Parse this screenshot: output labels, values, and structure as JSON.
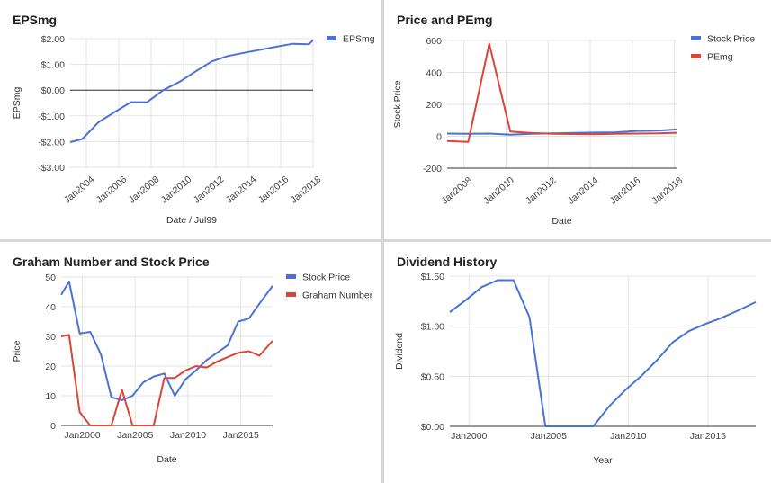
{
  "chart_data": [
    {
      "type": "line",
      "title": "EPSmg",
      "xlabel": "Date / Jul99",
      "ylabel": "EPSmg",
      "legend_position": "top-right",
      "x_tick_labels": [
        "Jan2004",
        "Jan2006",
        "Jan2008",
        "Jan2010",
        "Jan2012",
        "Jan2014",
        "Jan2016",
        "Jan2018"
      ],
      "x_ticks": [
        2004,
        2006,
        2008,
        2010,
        2012,
        2014,
        2016,
        2018
      ],
      "y_tick_labels": [
        "$2.00",
        "$1.00",
        "$0.00",
        "-$1.00",
        "-$2.00",
        "-$3.00"
      ],
      "y_ticks": [
        2,
        1,
        0,
        -1,
        -2,
        -3
      ],
      "xlim": [
        2003,
        2018
      ],
      "ylim": [
        -3,
        2
      ],
      "zero_line": true,
      "grid": true,
      "series": [
        {
          "name": "EPSmg",
          "color": "#4a72d6",
          "x": [
            2003,
            2003.75,
            2004.75,
            2005.75,
            2006.75,
            2007.75,
            2008.75,
            2009.75,
            2010.75,
            2011.75,
            2012.75,
            2013.75,
            2014.75,
            2015.75,
            2016.75,
            2017.75,
            2018
          ],
          "y": [
            -2.02,
            -1.9,
            -1.25,
            -0.85,
            -0.47,
            -0.47,
            0.0,
            0.32,
            0.73,
            1.12,
            1.33,
            1.45,
            1.57,
            1.69,
            1.8,
            1.78,
            1.95
          ]
        }
      ]
    },
    {
      "type": "line",
      "title": "Price and PEmg",
      "xlabel": "Date",
      "ylabel": "Stock Price",
      "legend_position": "top-right",
      "x_tick_labels": [
        "Jan2008",
        "Jan2010",
        "Jan2012",
        "Jan2014",
        "Jan2016",
        "Jan2018"
      ],
      "x_ticks": [
        2008,
        2010,
        2012,
        2014,
        2016,
        2018
      ],
      "y_tick_labels": [
        "600",
        "400",
        "200",
        "0",
        "-200"
      ],
      "y_ticks": [
        600,
        400,
        200,
        0,
        -200
      ],
      "xlim": [
        2007.2,
        2018.1
      ],
      "ylim": [
        -200,
        600
      ],
      "grid": true,
      "series": [
        {
          "name": "Stock Price",
          "color": "#4a72d6",
          "x": [
            2007.2,
            2008.2,
            2009.2,
            2010.2,
            2011.2,
            2012.2,
            2013.2,
            2014.2,
            2015.2,
            2016.2,
            2017.2,
            2018.1
          ],
          "y": [
            17,
            16,
            17,
            10,
            15,
            18,
            21,
            23,
            25,
            33,
            35,
            43
          ]
        },
        {
          "name": "PEmg",
          "color": "#db4437",
          "x": [
            2007.2,
            2008.2,
            2009.2,
            2010.2,
            2011.2,
            2012.2,
            2013.2,
            2014.2,
            2015.2,
            2016.2,
            2017.2,
            2018.1
          ],
          "y": [
            -30,
            -35,
            580,
            30,
            20,
            15,
            14,
            13,
            15,
            17,
            18,
            22
          ]
        }
      ]
    },
    {
      "type": "line",
      "title": "Graham Number and Stock Price",
      "xlabel": "Date",
      "ylabel": "Price",
      "legend_position": "top-right",
      "x_tick_labels": [
        "Jan2000",
        "Jan2005",
        "Jan2010",
        "Jan2015"
      ],
      "x_ticks": [
        2000,
        2005,
        2010,
        2015
      ],
      "y_tick_labels": [
        "50",
        "40",
        "30",
        "20",
        "10",
        "0"
      ],
      "y_ticks": [
        50,
        40,
        30,
        20,
        10,
        0
      ],
      "xlim": [
        1998,
        2018
      ],
      "ylim": [
        0,
        50
      ],
      "grid": true,
      "series": [
        {
          "name": "Stock Price",
          "color": "#4a72d6",
          "x": [
            1998,
            1998.75,
            1999.75,
            2000.75,
            2001.75,
            2002.75,
            2003.75,
            2004.75,
            2005.75,
            2006.75,
            2007.75,
            2008.75,
            2009.75,
            2010.75,
            2011.75,
            2012.75,
            2013.75,
            2014.75,
            2015.75,
            2016.75,
            2018
          ],
          "y": [
            44,
            48.5,
            31,
            31.5,
            24,
            9.5,
            8.5,
            10,
            14.5,
            16.5,
            17.5,
            10,
            15.5,
            18.5,
            22,
            24.5,
            27,
            35,
            36,
            41,
            47
          ]
        },
        {
          "name": "Graham Number",
          "color": "#db4437",
          "x": [
            1998,
            1998.75,
            1999.75,
            2000.75,
            2001.75,
            2002.75,
            2003.75,
            2004.75,
            2005.75,
            2006.75,
            2007.75,
            2008.75,
            2009.75,
            2010.75,
            2011.75,
            2012.75,
            2013.75,
            2014.75,
            2015.75,
            2016.75,
            2018
          ],
          "y": [
            30,
            30.5,
            4.5,
            0,
            0,
            0,
            12,
            0,
            0,
            0,
            16,
            16,
            18.5,
            20,
            19.5,
            21.5,
            23,
            24.5,
            25,
            23.5,
            28.5
          ]
        }
      ]
    },
    {
      "type": "line",
      "title": "Dividend History",
      "xlabel": "Year",
      "ylabel": "Dividend",
      "legend_position": "none",
      "x_tick_labels": [
        "Jan2000",
        "Jan2005",
        "Jan2010",
        "Jan2015"
      ],
      "x_ticks": [
        2000,
        2005,
        2010,
        2015
      ],
      "y_tick_labels": [
        "$1.50",
        "$1.00",
        "$0.50",
        "$0.00"
      ],
      "y_ticks": [
        1.5,
        1.0,
        0.5,
        0.0
      ],
      "xlim": [
        1998.8,
        2018
      ],
      "ylim": [
        0,
        1.5
      ],
      "grid": true,
      "series": [
        {
          "name": "",
          "color": "#4a72d6",
          "x": [
            1998.8,
            1999.8,
            2000.8,
            2001.8,
            2002.8,
            2003.8,
            2004.8,
            2005.8,
            2006.8,
            2007.8,
            2008.8,
            2009.8,
            2010.8,
            2011.8,
            2012.8,
            2013.8,
            2014.8,
            2015.8,
            2016.8,
            2018
          ],
          "y": [
            1.14,
            1.26,
            1.39,
            1.46,
            1.46,
            1.09,
            0,
            0,
            0,
            0,
            0.2,
            0.36,
            0.5,
            0.66,
            0.84,
            0.95,
            1.02,
            1.08,
            1.15,
            1.24
          ]
        }
      ]
    }
  ]
}
